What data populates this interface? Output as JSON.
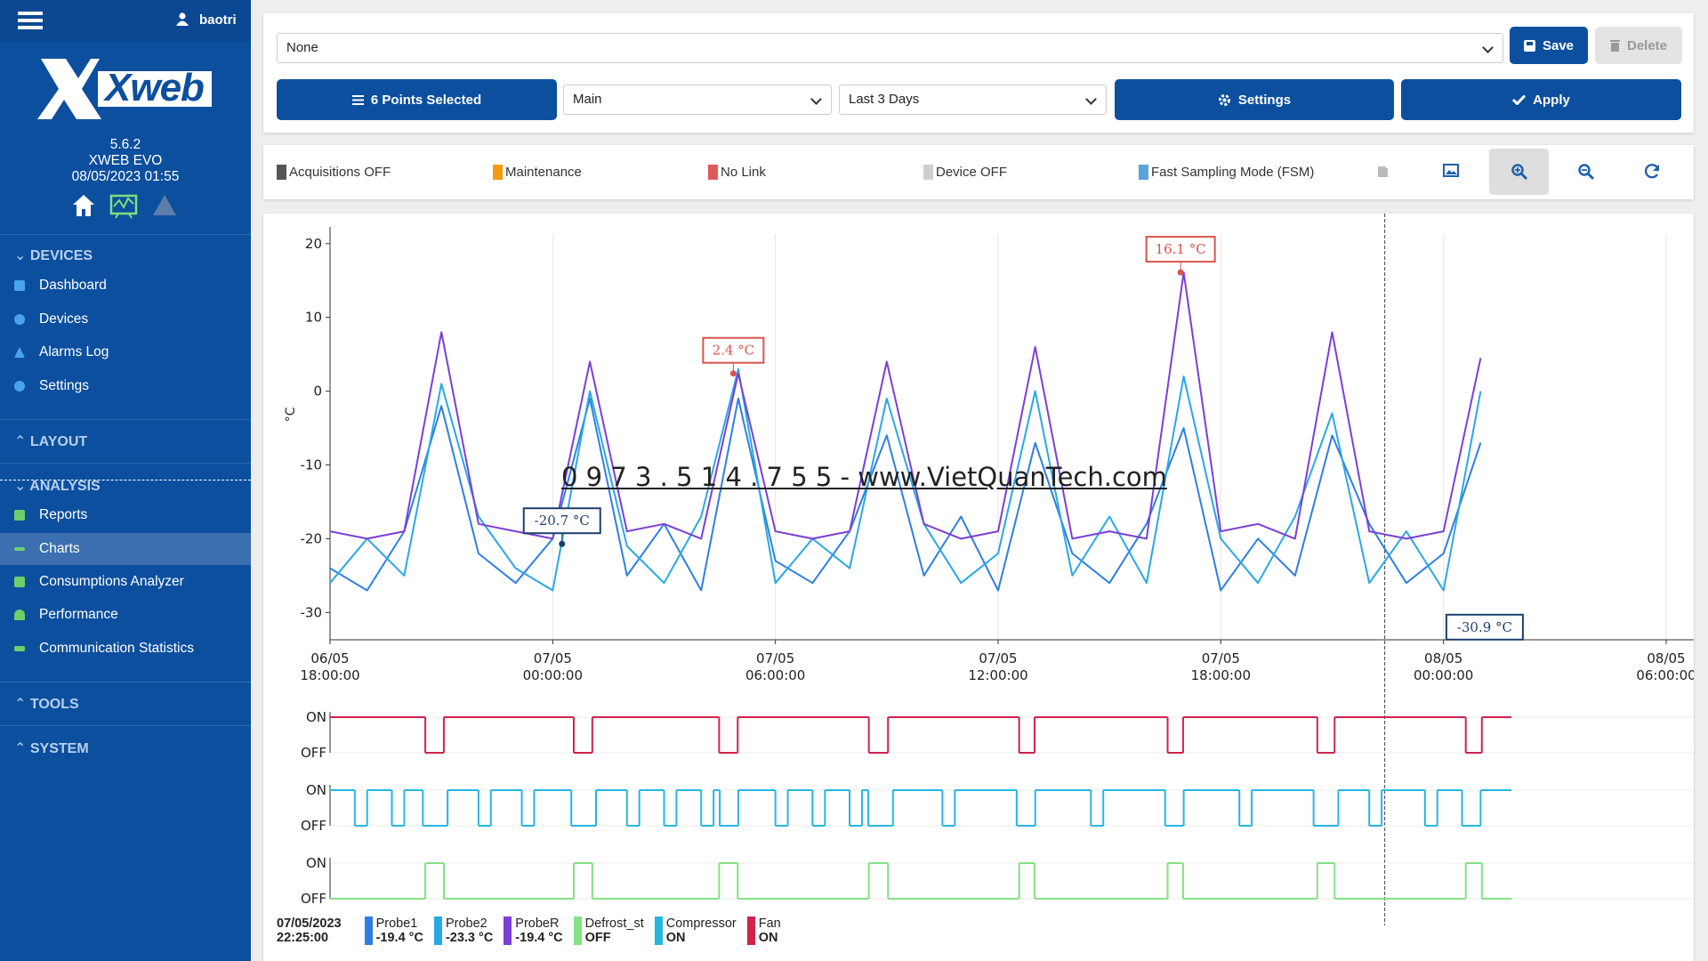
{
  "sidebar": {
    "user": "baotri",
    "logo": "Xweb",
    "version": "5.6.2",
    "product": "XWEB EVO",
    "datetime": "08/05/2023 01:55",
    "sections": [
      {
        "title": "DEVICES",
        "items": [
          "Dashboard",
          "Devices",
          "Alarms Log",
          "Settings"
        ]
      },
      {
        "title": "LAYOUT"
      },
      {
        "title": "ANALYSIS",
        "items": [
          "Reports",
          "Charts",
          "Consumptions Analyzer",
          "Performance",
          "Communication Statistics"
        ]
      },
      {
        "title": "TOOLS"
      },
      {
        "title": "SYSTEM"
      }
    ]
  },
  "toolbar": {
    "report": "None",
    "save": "Save",
    "delete": "Delete",
    "points": "6 Points Selected",
    "view": "Main",
    "range": "Last 3 Days",
    "settings": "Settings",
    "apply": "Apply"
  },
  "status_legend": [
    {
      "label": "Acquisitions OFF",
      "color": "#555555"
    },
    {
      "label": "Maintenance",
      "color": "#f39c12"
    },
    {
      "label": "No Link",
      "color": "#e05a5a"
    },
    {
      "label": "Device OFF",
      "color": "#cfcfcf"
    },
    {
      "label": "Fast Sampling Mode (FSM)",
      "color": "#5aa3dc"
    }
  ],
  "watermark": "0 9 7 3 . 5 1 4 . 7 5 5 - www.VietQuanTech.com",
  "chart_data": [
    {
      "type": "line",
      "y_label": "°C",
      "grid": "x",
      "cursor": "07/05/2023\n22:25:00",
      "xlim": [
        "06/05\n18:00:00",
        "08/05\n06:00:00"
      ],
      "xticks": [
        "06/05\n18:00:00",
        "07/05\n00:00:00",
        "07/05\n06:00:00",
        "07/05\n12:00:00",
        "07/05\n18:00:00",
        "08/05\n00:00:00",
        "08/05\n06:00:00"
      ],
      "ylim": [
        -33.7,
        21.3
      ],
      "yticks": [
        20,
        10,
        0,
        -10,
        -20,
        -30
      ],
      "x": [
        "06/05 18:00:00",
        "06/05 19:00:00",
        "06/05 20:00:00",
        "06/05 21:00:00",
        "06/05 22:00:00",
        "06/05 23:00:00",
        "07/05 00:00:00",
        "07/05 01:00:00",
        "07/05 02:00:00",
        "07/05 03:00:00",
        "07/05 04:00:00",
        "07/05 05:00:00",
        "07/05 06:00:00",
        "07/05 07:00:00",
        "07/05 08:00:00",
        "07/05 09:00:00",
        "07/05 10:00:00",
        "07/05 11:00:00",
        "07/05 12:00:00",
        "07/05 13:00:00",
        "07/05 14:00:00",
        "07/05 15:00:00",
        "07/05 16:00:00",
        "07/05 17:00:00",
        "07/05 18:00:00",
        "07/05 19:00:00",
        "07/05 20:00:00",
        "07/05 21:00:00",
        "07/05 22:00:00",
        "07/05 23:00:00",
        "08/05 00:00:00",
        "08/05 01:00:00"
      ],
      "series": [
        {
          "name": "Probe1",
          "color": "#2f7fe0",
          "cursor_label": "-19.4 °C",
          "values": [
            -24,
            -27,
            -19,
            -2,
            -22,
            -26,
            -20,
            -1,
            -25,
            -18,
            -27,
            -1,
            -23,
            -26,
            -19,
            -6,
            -25,
            -17,
            -27,
            -7,
            -22,
            -26,
            -18,
            -5,
            -27,
            -20,
            -25,
            -6,
            -18,
            -26,
            -22,
            -7
          ]
        },
        {
          "name": "Probe2",
          "color": "#29a8e6",
          "cursor_label": "-23.3 °C",
          "values": [
            -26,
            -20,
            -25,
            1,
            -17,
            -24,
            -27,
            0,
            -21,
            -26,
            -17,
            3,
            -26,
            -20,
            -24,
            -1,
            -18,
            -26,
            -22,
            0,
            -25,
            -17,
            -26,
            2,
            -20,
            -26,
            -17,
            -3,
            -26,
            -19,
            -27,
            0
          ]
        },
        {
          "name": "ProbeR",
          "color": "#7b3fd6",
          "cursor_label": "-19.4 °C",
          "values": [
            -19,
            -20,
            -19,
            8,
            -18,
            -19,
            -20,
            4,
            -19,
            -18,
            -20,
            2.4,
            -19,
            -20,
            -19,
            4,
            -18,
            -20,
            -19,
            6,
            -20,
            -19,
            -20,
            16.1,
            -19,
            -18,
            -20,
            8,
            -19,
            -20,
            -19,
            4.5
          ]
        }
      ],
      "annotations": [
        {
          "x": "07/05 16:55:00",
          "y": 16.1,
          "label": "16.1 °C",
          "color": "#d9534f"
        },
        {
          "x": "07/05 04:52:00",
          "y": 2.4,
          "label": "2.4 °C",
          "color": "#d9534f"
        },
        {
          "x": "07/05 00:15:00",
          "y": -20.7,
          "label": "-20.7 °C",
          "color": "#1d3f6e"
        },
        {
          "x": "08/05 00:55:00",
          "y": -30.9,
          "label": "-30.9 °C",
          "color": "#1d3f6e"
        }
      ]
    },
    {
      "type": "step",
      "ylim": [
        0,
        1
      ],
      "yticks": [
        {
          "value": 1,
          "label": "ON"
        },
        {
          "value": 0,
          "label": "OFF"
        }
      ],
      "series": [
        {
          "name": "Defrost_st",
          "color": "#86e086",
          "cursor_label": "OFF",
          "x": [
            "06/05 18:00:00",
            "06/05 20:34:00",
            "06/05 21:04:00",
            "07/05 00:34:00",
            "07/05 01:04:00",
            "07/05 04:29:00",
            "07/05 04:59:00",
            "07/05 08:31:00",
            "07/05 09:02:00",
            "07/05 12:34:00",
            "07/05 12:59:00",
            "07/05 16:34:00",
            "07/05 16:59:00",
            "07/05 20:36:00",
            "07/05 21:04:00",
            "08/05 00:36:00",
            "08/05 01:02:00",
            "08/05 01:50:00"
          ],
          "values": [
            0,
            1,
            0,
            1,
            0,
            1,
            0,
            1,
            0,
            1,
            0,
            1,
            0,
            1,
            0,
            1,
            0,
            0
          ]
        },
        {
          "name": "Compressor",
          "color": "#26b6e2",
          "cursor_label": "ON",
          "x": [
            "06/05 18:00:00",
            "06/05 18:40:00",
            "06/05 19:00:00",
            "06/05 19:40:00",
            "06/05 20:00:00",
            "06/05 20:30:00",
            "06/05 21:10:00",
            "06/05 22:00:00",
            "06/05 22:20:00",
            "06/05 23:10:00",
            "06/05 23:30:00",
            "07/05 00:30:00",
            "07/05 01:10:00",
            "07/05 02:00:00",
            "07/05 02:20:00",
            "07/05 03:00:00",
            "07/05 03:20:00",
            "07/05 04:00:00",
            "07/05 04:20:00",
            "07/05 04:30:00",
            "07/05 05:00:00",
            "07/05 06:00:00",
            "07/05 06:20:00",
            "07/05 07:00:00",
            "07/05 07:20:00",
            "07/05 08:00:00",
            "07/05 08:20:00",
            "07/05 08:30:00",
            "07/05 09:10:00",
            "07/05 10:30:00",
            "07/05 10:50:00",
            "07/05 12:30:00",
            "07/05 13:00:00",
            "07/05 14:30:00",
            "07/05 14:50:00",
            "07/05 16:30:00",
            "07/05 17:00:00",
            "07/05 18:30:00",
            "07/05 18:50:00",
            "07/05 20:30:00",
            "07/05 21:10:00",
            "07/05 22:00:00",
            "07/05 22:20:00",
            "07/05 23:30:00",
            "07/05 23:50:00",
            "08/05 00:30:00",
            "08/05 01:00:00",
            "08/05 01:50:00"
          ],
          "values": [
            1,
            0,
            1,
            0,
            1,
            0,
            1,
            0,
            1,
            0,
            1,
            0,
            1,
            0,
            1,
            0,
            1,
            0,
            1,
            0,
            1,
            0,
            1,
            0,
            1,
            0,
            1,
            0,
            1,
            0,
            1,
            0,
            1,
            0,
            1,
            0,
            1,
            0,
            1,
            0,
            1,
            0,
            1,
            0,
            1,
            0,
            1,
            1
          ]
        },
        {
          "name": "Fan",
          "color": "#d0234b",
          "cursor_label": "ON",
          "x": [
            "06/05 18:00:00",
            "06/05 20:34:00",
            "06/05 21:04:00",
            "07/05 00:34:00",
            "07/05 01:04:00",
            "07/05 04:29:00",
            "07/05 04:59:00",
            "07/05 08:31:00",
            "07/05 09:02:00",
            "07/05 12:34:00",
            "07/05 12:59:00",
            "07/05 16:34:00",
            "07/05 16:59:00",
            "07/05 20:36:00",
            "07/05 21:04:00",
            "08/05 00:36:00",
            "08/05 01:02:00",
            "08/05 01:50:00"
          ],
          "values": [
            1,
            0,
            1,
            0,
            1,
            0,
            1,
            0,
            1,
            0,
            1,
            0,
            1,
            0,
            1,
            0,
            1,
            1
          ]
        }
      ]
    }
  ]
}
